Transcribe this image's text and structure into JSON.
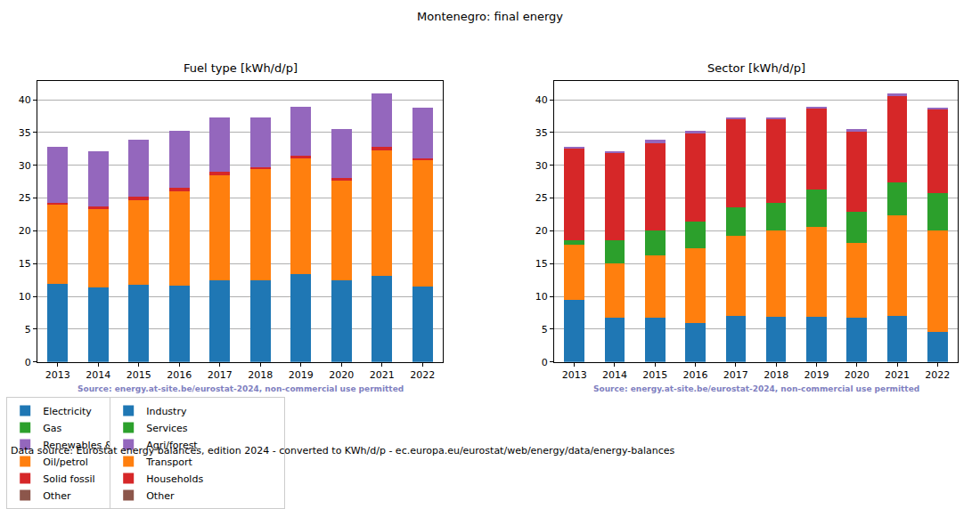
{
  "title": "Montenegro: final energy",
  "footer": "Data source: Eurostat energy balances, edition 2024 - converted to KWh/d/p - ec.europa.eu/eurostat/web/energy/data/energy-balances",
  "chart_data": [
    {
      "type": "bar",
      "title": "Fuel type [kWh/d/p]",
      "stacked": true,
      "grid": true,
      "legend": "below",
      "annotations": [
        "Source: energy.at-site.be/eurostat-2024, non-commercial use permitted"
      ],
      "categories": [
        "2013",
        "2014",
        "2015",
        "2016",
        "2017",
        "2018",
        "2019",
        "2020",
        "2021",
        "2022"
      ],
      "ylim": [
        0,
        42.9
      ],
      "yticks": [
        0,
        5,
        10,
        15,
        20,
        25,
        30,
        35,
        40
      ],
      "series": [
        {
          "name": "Electricity",
          "color": "#1f77b4",
          "values": [
            11.9,
            11.4,
            11.8,
            11.7,
            12.5,
            12.5,
            13.4,
            12.4,
            13.1,
            11.5
          ]
        },
        {
          "name": "Oil/petrol",
          "color": "#ff7f0e",
          "values": [
            12.1,
            11.9,
            12.9,
            14.3,
            16.0,
            16.9,
            17.6,
            15.3,
            19.2,
            19.3
          ]
        },
        {
          "name": "Gas",
          "color": "#2ca02c",
          "values": [
            0,
            0,
            0,
            0,
            0,
            0,
            0,
            0,
            0,
            0
          ]
        },
        {
          "name": "Solid fossil",
          "color": "#d62728",
          "values": [
            0.3,
            0.4,
            0.5,
            0.6,
            0.5,
            0.3,
            0.4,
            0.3,
            0.5,
            0.3
          ]
        },
        {
          "name": "Renewables & biofuel",
          "color": "#9467bd",
          "values": [
            8.5,
            8.5,
            8.7,
            8.6,
            8.3,
            7.6,
            7.5,
            7.5,
            8.1,
            7.7
          ]
        },
        {
          "name": "Other",
          "color": "#8c564b",
          "values": [
            0,
            0,
            0,
            0,
            0,
            0,
            0,
            0,
            0,
            0
          ]
        }
      ]
    },
    {
      "type": "bar",
      "title": "Sector [kWh/d/p]",
      "stacked": true,
      "grid": true,
      "legend": "below",
      "annotations": [
        "Source: energy.at-site.be/eurostat-2024, non-commercial use permitted"
      ],
      "categories": [
        "2013",
        "2014",
        "2015",
        "2016",
        "2017",
        "2018",
        "2019",
        "2020",
        "2021",
        "2022"
      ],
      "ylim": [
        0,
        42.9
      ],
      "yticks": [
        0,
        5,
        10,
        15,
        20,
        25,
        30,
        35,
        40
      ],
      "series": [
        {
          "name": "Industry",
          "color": "#1f77b4",
          "values": [
            9.5,
            6.8,
            6.7,
            6.0,
            7.0,
            6.9,
            6.9,
            6.8,
            7.0,
            4.6
          ]
        },
        {
          "name": "Transport",
          "color": "#ff7f0e",
          "values": [
            8.4,
            8.3,
            9.6,
            11.3,
            12.2,
            13.1,
            13.7,
            11.4,
            15.3,
            15.4
          ]
        },
        {
          "name": "Services",
          "color": "#2ca02c",
          "values": [
            0.7,
            3.5,
            3.7,
            4.1,
            4.4,
            4.3,
            5.7,
            4.7,
            5.1,
            5.7
          ]
        },
        {
          "name": "Households",
          "color": "#d62728",
          "values": [
            13.9,
            13.2,
            13.4,
            13.4,
            13.4,
            12.7,
            12.3,
            12.2,
            13.1,
            12.8
          ]
        },
        {
          "name": "Agri/forest",
          "color": "#9467bd",
          "values": [
            0.3,
            0.4,
            0.5,
            0.4,
            0.3,
            0.3,
            0.3,
            0.4,
            0.4,
            0.3
          ]
        },
        {
          "name": "Other",
          "color": "#8c564b",
          "values": [
            0,
            0,
            0,
            0,
            0,
            0,
            0,
            0,
            0,
            0
          ]
        }
      ]
    }
  ]
}
